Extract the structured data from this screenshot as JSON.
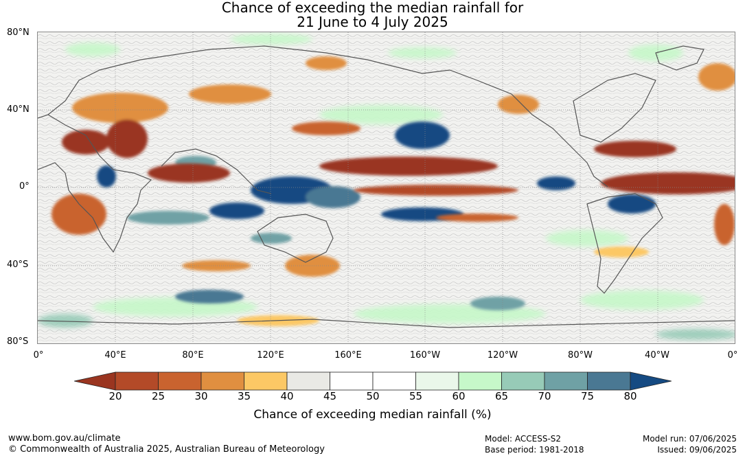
{
  "title": {
    "line1": "Chance of exceeding the median rainfall for",
    "line2": "21 June to 4 July 2025"
  },
  "map": {
    "lat_labels": [
      "80°N",
      "40°N",
      "0°",
      "40°S",
      "80°S"
    ],
    "lon_labels": [
      "0°",
      "40°E",
      "80°E",
      "120°E",
      "160°E",
      "160°W",
      "120°W",
      "80°W",
      "40°W",
      "0°"
    ]
  },
  "colorbar": {
    "title": "Chance of exceeding median rainfall (%)",
    "ticks": [
      "20",
      "25",
      "30",
      "35",
      "40",
      "45",
      "50",
      "55",
      "60",
      "65",
      "70",
      "75",
      "80"
    ],
    "colors": [
      "#9a3520",
      "#b34a28",
      "#c9632f",
      "#e08f40",
      "#fcc865",
      "#e9e9e5",
      "#ffffff",
      "#ffffff",
      "#eaf7ea",
      "#c6f8c9",
      "#97cbb7",
      "#6fa1a5",
      "#4a7893",
      "#154a82"
    ]
  },
  "footer": {
    "site": "www.bom.gov.au/climate",
    "copyright": "© Commonwealth of Australia 2025, Australian Bureau of Meteorology",
    "model": "Model: ACCESS-S2",
    "base_period": "Base period: 1981-2018",
    "model_run": "Model run: 07/06/2025",
    "issued": "Issued: 09/06/2025"
  }
}
